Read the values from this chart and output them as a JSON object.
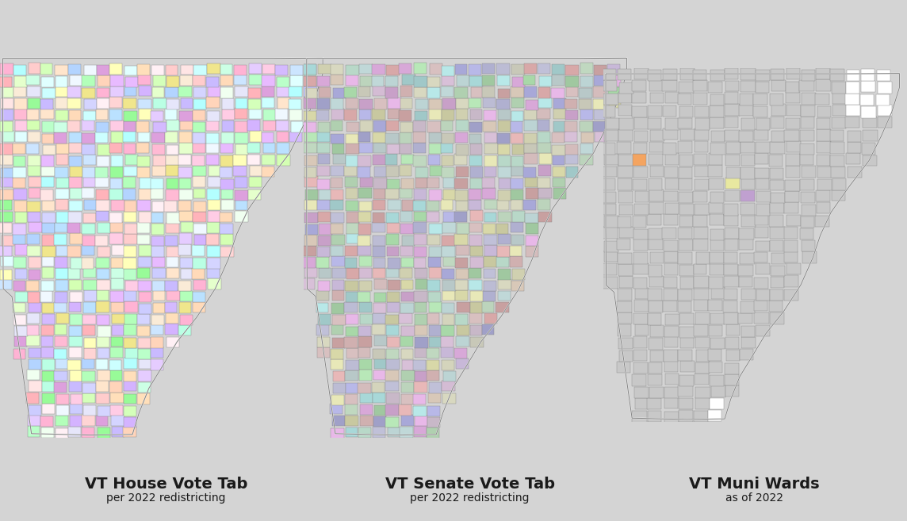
{
  "title1_line1": "VT House Vote Tab",
  "title1_line2": "per 2022 redistricting",
  "title2_line1": "VT Senate Vote Tab",
  "title2_line2": "per 2022 redistricting",
  "title3_line1": "VT Muni Wards",
  "title3_line2": "as of 2022",
  "background_color": "#d4d4d4",
  "title_fontsize": 14,
  "subtitle_fontsize": 10,
  "title_color": "#1a1a1a",
  "figure_width": 11.44,
  "figure_height": 6.57,
  "map1_pastel_colors": [
    "#ffb3ba",
    "#ffdfba",
    "#ffffba",
    "#baffc9",
    "#bae1ff",
    "#e8baff",
    "#c9baff",
    "#ffd4ba",
    "#d4ffba",
    "#baffe4",
    "#d4baff",
    "#ffbad4",
    "#b3d4ff",
    "#d4ffb3",
    "#ffd4d4",
    "#d4d4ff",
    "#b3ffba",
    "#ffb3d4",
    "#d4b3ff",
    "#b3ffff",
    "#ffcce5",
    "#e5ffcc",
    "#ccffff",
    "#ffcccc",
    "#ccccff",
    "#ffe5cc",
    "#ccffe5",
    "#e5ccff",
    "#cce5ff",
    "#ffe5e5",
    "#f0e68c",
    "#e6e6fa",
    "#fff0f5",
    "#f0fff0",
    "#f0f8ff",
    "#faebd7",
    "#ffdab9",
    "#e0ffff",
    "#dda0dd",
    "#98fb98"
  ],
  "map2_pastel_colors": [
    "#a8d8a8",
    "#d8a8a8",
    "#a8a8d8",
    "#d8d8a8",
    "#a8d8d8",
    "#d8a8d8",
    "#b8e8b8",
    "#e8b8b8",
    "#b8b8e8",
    "#e8e8b8",
    "#b8e8e8",
    "#e8b8e8",
    "#c8c8b8",
    "#c8b8c8",
    "#b8c8c8",
    "#d8c8b8",
    "#b8d8c8",
    "#c8b8d8",
    "#c0d8c0",
    "#d8c0c0",
    "#c0c0d8",
    "#d8d8c0",
    "#c0d8d8",
    "#d8c0d8",
    "#bcd4bc",
    "#d4bcbc",
    "#bcbcd4",
    "#d4d4bc",
    "#bcd4d4",
    "#d4bcd4",
    "#a0c8a0",
    "#c8a0a0",
    "#a0a0c8",
    "#c8c8a0",
    "#a0c8c8",
    "#c8a0c8",
    "#b0d0b0",
    "#d0b0b0",
    "#b0b0d0",
    "#d0d0b0"
  ],
  "map3_base_color": "#c8c8c8",
  "map3_line_color": "#888888",
  "map3_white_color": "#ffffff",
  "map3_orange_color": "#f4a460",
  "map3_yellow_color": "#e8e8a0",
  "map3_cyan_color": "#a0e8e8",
  "map3_blue_color": "#a0a0e0",
  "map3_purple_color": "#c0a0d0",
  "border_color_map1": "#888888",
  "border_color_map2": "#888888",
  "border_color_map3": "#888888",
  "border_width": 0.3
}
